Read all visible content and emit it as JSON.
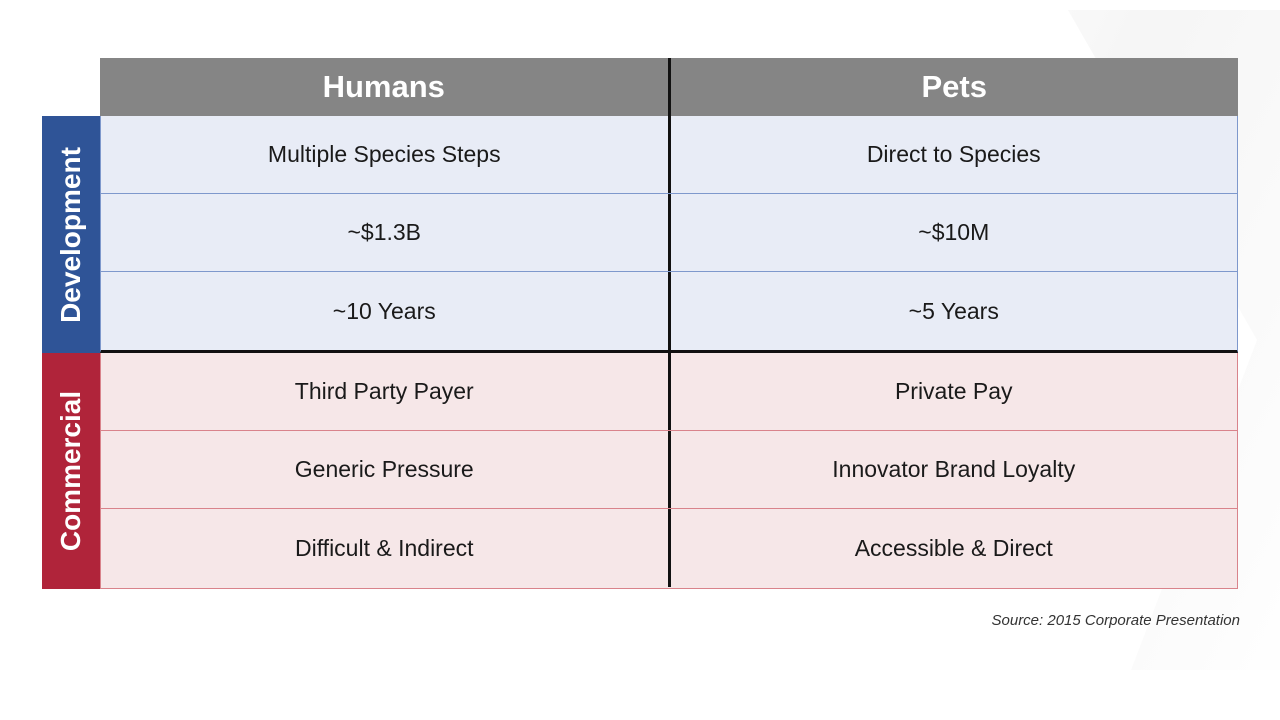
{
  "table": {
    "headers": [
      "Humans",
      "Pets"
    ],
    "sections": [
      {
        "label": "Development",
        "color": "#2f5497",
        "rows": [
          [
            "Multiple Species Steps",
            "Direct to Species"
          ],
          [
            "~$1.3B",
            "~$10M"
          ],
          [
            "~10 Years",
            "~5 Years"
          ]
        ]
      },
      {
        "label": "Commercial",
        "color": "#b0243a",
        "rows": [
          [
            "Third Party Payer",
            "Private Pay"
          ],
          [
            "Generic Pressure",
            "Innovator Brand Loyalty"
          ],
          [
            "Difficult & Indirect",
            "Accessible & Direct"
          ]
        ]
      }
    ]
  },
  "source": "Source: 2015 Corporate Presentation"
}
